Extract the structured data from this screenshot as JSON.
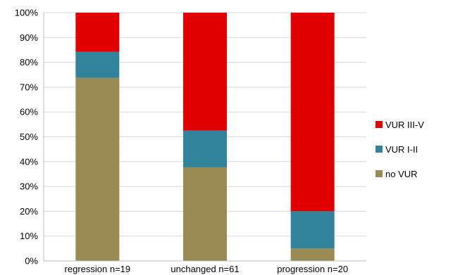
{
  "chart_data": {
    "type": "bar",
    "stacked": true,
    "categories": [
      "regression n=19",
      "unchanged n=61",
      "progression n=20"
    ],
    "series": [
      {
        "name": "no VUR",
        "values": [
          73.7,
          37.7,
          5.0
        ],
        "color": "#9a8b55"
      },
      {
        "name": "VUR I-II",
        "values": [
          10.5,
          14.8,
          15.0
        ],
        "color": "#31849b"
      },
      {
        "name": "VUR III-V",
        "values": [
          15.8,
          47.5,
          80.0
        ],
        "color": "#e00000"
      }
    ],
    "y_ticks": [
      "0%",
      "10%",
      "20%",
      "30%",
      "40%",
      "50%",
      "60%",
      "70%",
      "80%",
      "90%",
      "100%"
    ],
    "ylim": [
      0,
      100
    ],
    "grid": true,
    "legend_position": "right",
    "legend_order": [
      "VUR III-V",
      "VUR I-II",
      "no VUR"
    ]
  }
}
